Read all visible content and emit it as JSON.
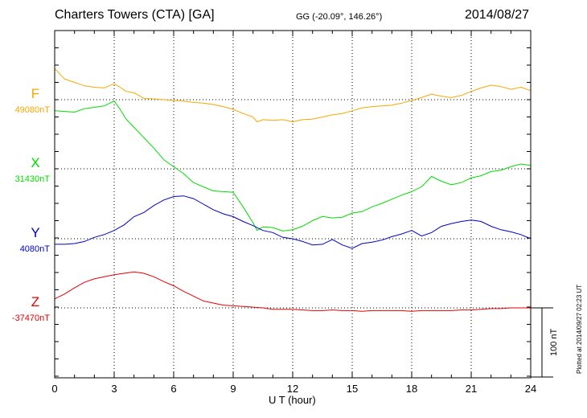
{
  "header": {
    "station": "Charters Towers (CTA)  [GA]",
    "coords": "GG (-20.09°, 146.26°)",
    "date": "2014/08/27"
  },
  "plotted_note": "Plotted at 2014/09/27 02:23 UT",
  "scale_bar_label": "100 nT",
  "colors": {
    "F": "#f5a800",
    "X": "#00dd00",
    "Y": "#0000cc",
    "Z": "#e60000"
  },
  "chart_data": {
    "type": "line",
    "xlabel": "U T (hour)",
    "xlim": [
      0,
      24
    ],
    "xticks": [
      "0",
      "3",
      "6",
      "9",
      "12",
      "15",
      "18",
      "21",
      "24"
    ],
    "scale_nT": 100,
    "series": [
      {
        "name": "F",
        "baseline_label": "49080nT",
        "baseline": 49080,
        "x": [
          0,
          0.5,
          1,
          1.5,
          2,
          2.5,
          3,
          3.3,
          3.6,
          4,
          4.5,
          5,
          5.5,
          6,
          6.5,
          7,
          7.5,
          8,
          8.5,
          9,
          9.5,
          10,
          10.2,
          10.5,
          11,
          11.5,
          12,
          12.5,
          13,
          13.5,
          14,
          14.5,
          15,
          15.5,
          16,
          16.5,
          17,
          17.5,
          18,
          18.5,
          19,
          19.5,
          20,
          20.5,
          21,
          21.5,
          22,
          22.5,
          23,
          23.5,
          24
        ],
        "y": [
          49125,
          49110,
          49105,
          49100,
          49098,
          49097,
          49103,
          49098,
          49092,
          49090,
          49082,
          49081,
          49080,
          49079,
          49078,
          49076,
          49075,
          49073,
          49070,
          49066,
          49060,
          49055,
          49048,
          49051,
          49050,
          49051,
          49048,
          49051,
          49052,
          49055,
          49058,
          49060,
          49064,
          49068,
          49070,
          49071,
          49072,
          49075,
          49079,
          49083,
          49088,
          49085,
          49083,
          49086,
          49092,
          49097,
          49101,
          49099,
          49095,
          49098,
          49093
        ]
      },
      {
        "name": "X",
        "baseline_label": "31430nT",
        "baseline": 31430,
        "x": [
          0,
          0.5,
          1,
          1.5,
          2,
          2.5,
          3,
          3.3,
          3.6,
          4,
          4.5,
          5,
          5.5,
          6,
          6.5,
          7,
          7.5,
          8,
          8.5,
          9,
          9.5,
          10,
          10.2,
          10.5,
          11,
          11.5,
          12,
          12.5,
          13,
          13.5,
          14,
          14.5,
          15,
          15.5,
          16,
          16.5,
          17,
          17.5,
          18,
          18.5,
          19,
          19.5,
          20,
          20.5,
          21,
          21.5,
          22,
          22.5,
          23,
          23.5,
          24
        ],
        "y": [
          31514,
          31513,
          31512,
          31517,
          31519,
          31521,
          31528,
          31516,
          31502,
          31490,
          31475,
          31460,
          31443,
          31433,
          31423,
          31410,
          31404,
          31398,
          31397,
          31396,
          31375,
          31352,
          31341,
          31346,
          31345,
          31340,
          31342,
          31347,
          31355,
          31361,
          31359,
          31360,
          31366,
          31368,
          31375,
          31380,
          31386,
          31392,
          31397,
          31404,
          31419,
          31412,
          31407,
          31410,
          31417,
          31420,
          31426,
          31428,
          31433,
          31437,
          31435
        ]
      },
      {
        "name": "Y",
        "baseline_label": "4080nT",
        "baseline": 4080,
        "x": [
          0,
          0.5,
          1,
          1.5,
          2,
          2.5,
          3,
          3.5,
          4,
          4.5,
          5,
          5.5,
          6,
          6.5,
          7,
          7.5,
          8,
          8.5,
          9,
          9.5,
          10,
          10.5,
          11,
          11.5,
          12,
          12.5,
          13,
          13.5,
          14,
          14.5,
          15,
          15.5,
          16,
          16.5,
          17,
          17.5,
          18,
          18.5,
          19,
          19.5,
          20,
          20.5,
          21,
          21.5,
          22,
          22.5,
          23,
          23.5,
          24
        ],
        "y": [
          4072,
          4072,
          4073,
          4076,
          4082,
          4086,
          4092,
          4100,
          4112,
          4118,
          4128,
          4136,
          4141,
          4142,
          4138,
          4130,
          4122,
          4116,
          4112,
          4105,
          4099,
          4092,
          4089,
          4082,
          4080,
          4076,
          4071,
          4072,
          4079,
          4071,
          4066,
          4073,
          4075,
          4078,
          4083,
          4087,
          4092,
          4084,
          4089,
          4098,
          4102,
          4105,
          4107,
          4105,
          4098,
          4093,
          4090,
          4086,
          4080
        ]
      },
      {
        "name": "Z",
        "baseline_label": "-37470nT",
        "baseline": -37470,
        "x": [
          0,
          0.5,
          1,
          1.5,
          2,
          2.5,
          3,
          3.5,
          4,
          4.5,
          5,
          5.5,
          6,
          6.5,
          7,
          7.5,
          8,
          8.5,
          9,
          9.5,
          10,
          10.5,
          11,
          11.5,
          12,
          12.5,
          13,
          13.5,
          14,
          14.5,
          15,
          15.5,
          16,
          16.5,
          17,
          17.5,
          18,
          18.5,
          19,
          19.5,
          20,
          20.5,
          21,
          21.5,
          22,
          22.5,
          23,
          23.5,
          24
        ],
        "y": [
          -37457,
          -37450,
          -37441,
          -37433,
          -37428,
          -37425,
          -37422,
          -37420,
          -37418,
          -37420,
          -37425,
          -37432,
          -37438,
          -37446,
          -37453,
          -37460,
          -37463,
          -37466,
          -37467,
          -37468,
          -37469,
          -37470,
          -37472,
          -37472,
          -37472,
          -37473,
          -37474,
          -37474,
          -37473,
          -37474,
          -37474,
          -37475,
          -37474,
          -37474,
          -37474,
          -37474,
          -37475,
          -37474,
          -37474,
          -37474,
          -37474,
          -37473,
          -37473,
          -37472,
          -37471,
          -37471,
          -37470,
          -37470,
          -37470
        ]
      }
    ]
  }
}
